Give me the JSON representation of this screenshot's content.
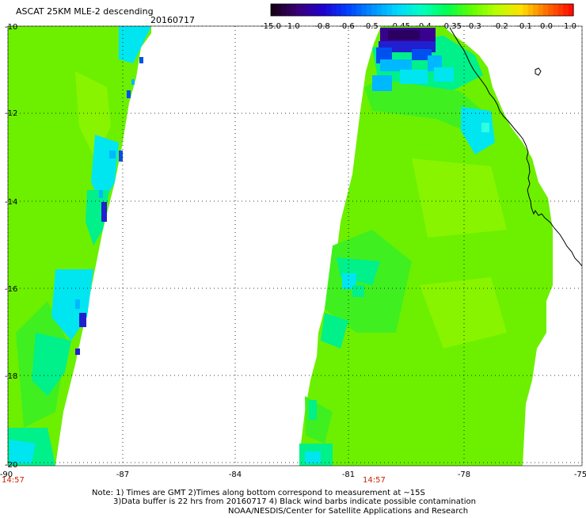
{
  "header": {
    "title": "ASCAT 25KM MLE-2 descending",
    "date": "20160717"
  },
  "colorbar": {
    "labels": [
      "-15.0",
      "-1.0",
      "-0.8",
      "-0.6",
      "-0.5",
      "-0.45",
      "-0.4",
      "-0.35",
      "-0.3",
      "-0.2",
      "-0.1",
      "0.0",
      "1.0"
    ],
    "colors": [
      "#180018",
      "#3a0078",
      "#2000d0",
      "#0040ff",
      "#0090ff",
      "#00d8ff",
      "#00ffc0",
      "#00ff50",
      "#60ff00",
      "#b8ff00",
      "#ffe000",
      "#ff7000",
      "#ff1000"
    ]
  },
  "map": {
    "lat_range": [
      -20,
      -10
    ],
    "lon_range": [
      -90,
      -75
    ],
    "lat_ticks": [
      "-10",
      "-12",
      "-14",
      "-16",
      "-18",
      "-20"
    ],
    "lon_ticks": [
      "-90",
      "-87",
      "-84",
      "-81",
      "-78",
      "-75"
    ],
    "pass_times": [
      "14:57",
      "14:57"
    ],
    "time_color": "#cc2200",
    "grid": true,
    "coastline_color": "#000000",
    "swath_colors": {
      "green": "#6cf000",
      "green_light": "#88f400",
      "green_mid": "#40ef20",
      "aqua": "#00f08a",
      "cyan": "#00e6f0",
      "cyan_deep": "#00b8ff",
      "blue": "#0050f0",
      "blue_deep": "#2020d0",
      "purple": "#3a0090"
    }
  },
  "notes": {
    "line1": "Note: 1) Times are GMT 2)Times along bottom correspond to measurement at ~15S",
    "line2": "3)Data buffer is 22 hrs from 20160717 4) Black wind barbs indicate possible contamination",
    "line3": "NOAA/NESDIS/Center for Satellite Applications and Research"
  }
}
